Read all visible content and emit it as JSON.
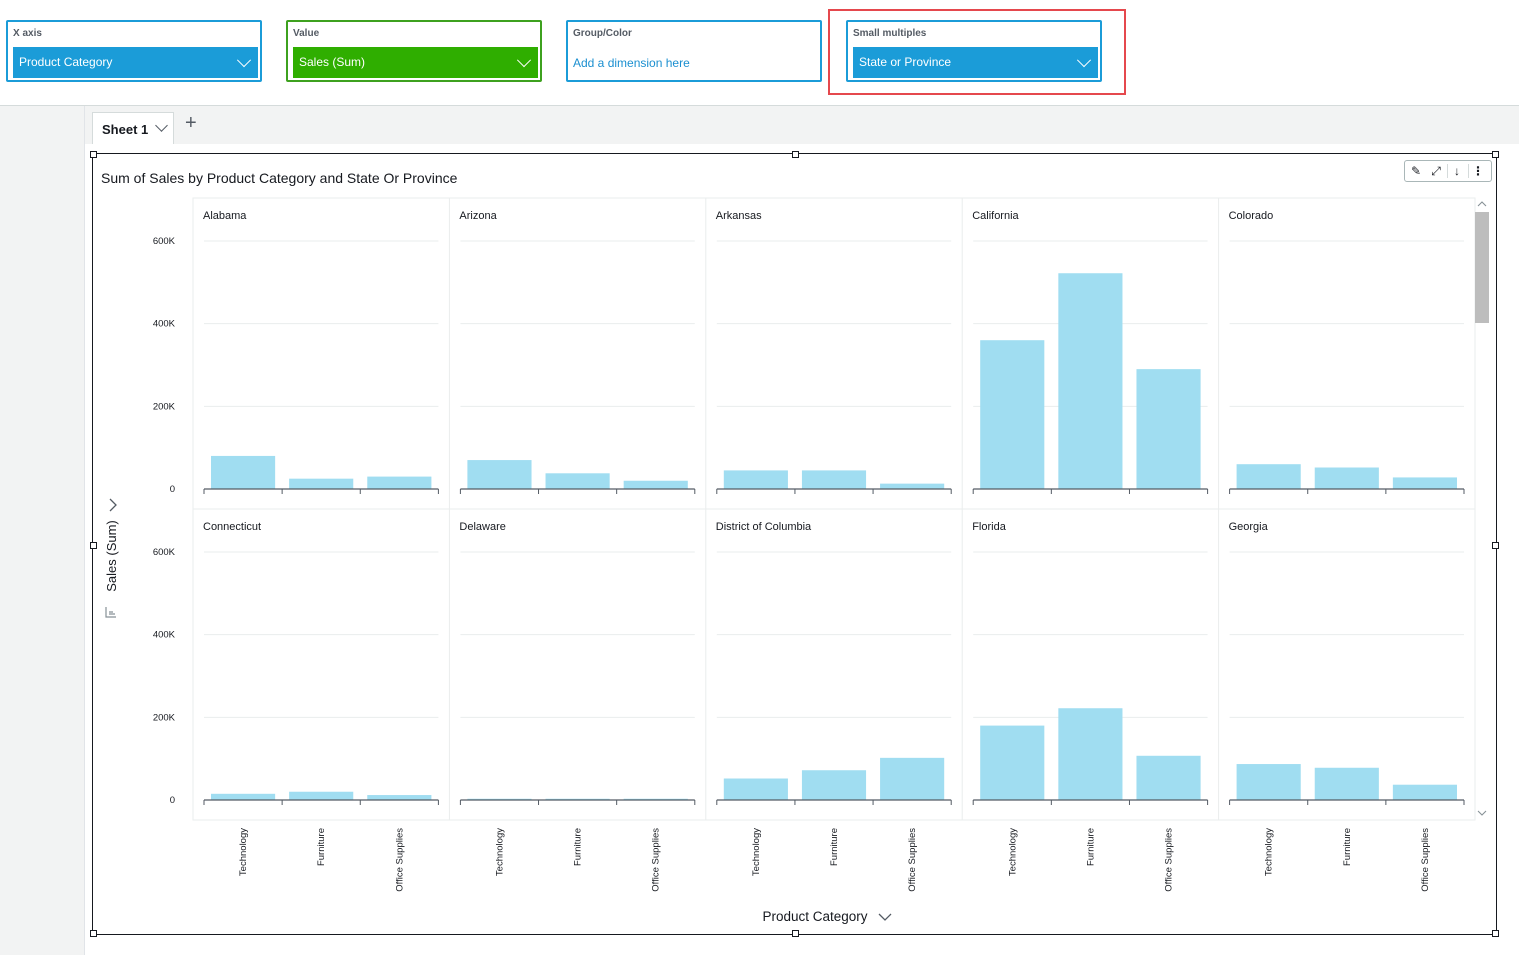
{
  "field_wells": [
    {
      "label": "X axis",
      "value": "Product Category",
      "type": "dimension"
    },
    {
      "label": "Value",
      "value": "Sales (Sum)",
      "type": "measure"
    },
    {
      "label": "Group/Color",
      "placeholder": "Add a dimension here",
      "type": "empty"
    },
    {
      "label": "Small multiples",
      "value": "State or Province",
      "type": "dimension"
    }
  ],
  "colors": {
    "dimension_blue": "#1b9cd8",
    "measure_green": "#2fae00",
    "bar": "#a0ddf1",
    "highlight_red": "#e5484d"
  },
  "sheet": {
    "tab_label": "Sheet 1",
    "add_icon": "plus-icon"
  },
  "visual": {
    "title": "Sum of Sales by Product Category and State Or Province",
    "toolbar_icons": [
      "pencil-icon",
      "expand-icon",
      "download-icon",
      "more-vertical-icon"
    ]
  },
  "chart_data": {
    "type": "bar",
    "layout": "small-multiples",
    "grid_columns": 5,
    "categories": [
      "Technology",
      "Furniture",
      "Office Supplies"
    ],
    "ylabel": "Sales (Sum)",
    "xlabel": "Product Category",
    "ylim": [
      0,
      600000
    ],
    "y_ticks": [
      0,
      200000,
      400000,
      600000
    ],
    "y_tick_labels": [
      "0",
      "200K",
      "400K",
      "600K"
    ],
    "grid": true,
    "panels": [
      {
        "name": "Alabama",
        "values": [
          80000,
          25000,
          30000
        ]
      },
      {
        "name": "Arizona",
        "values": [
          70000,
          38000,
          20000
        ]
      },
      {
        "name": "Arkansas",
        "values": [
          45000,
          45000,
          13000
        ]
      },
      {
        "name": "California",
        "values": [
          360000,
          522000,
          290000
        ]
      },
      {
        "name": "Colorado",
        "values": [
          60000,
          52000,
          28000
        ]
      },
      {
        "name": "Connecticut",
        "values": [
          15000,
          20000,
          12000
        ]
      },
      {
        "name": "Delaware",
        "values": [
          3000,
          3000,
          3000
        ]
      },
      {
        "name": "District of Columbia",
        "values": [
          52000,
          72000,
          102000
        ]
      },
      {
        "name": "Florida",
        "values": [
          180000,
          222000,
          107000
        ]
      },
      {
        "name": "Georgia",
        "values": [
          87000,
          78000,
          37000
        ]
      }
    ]
  }
}
